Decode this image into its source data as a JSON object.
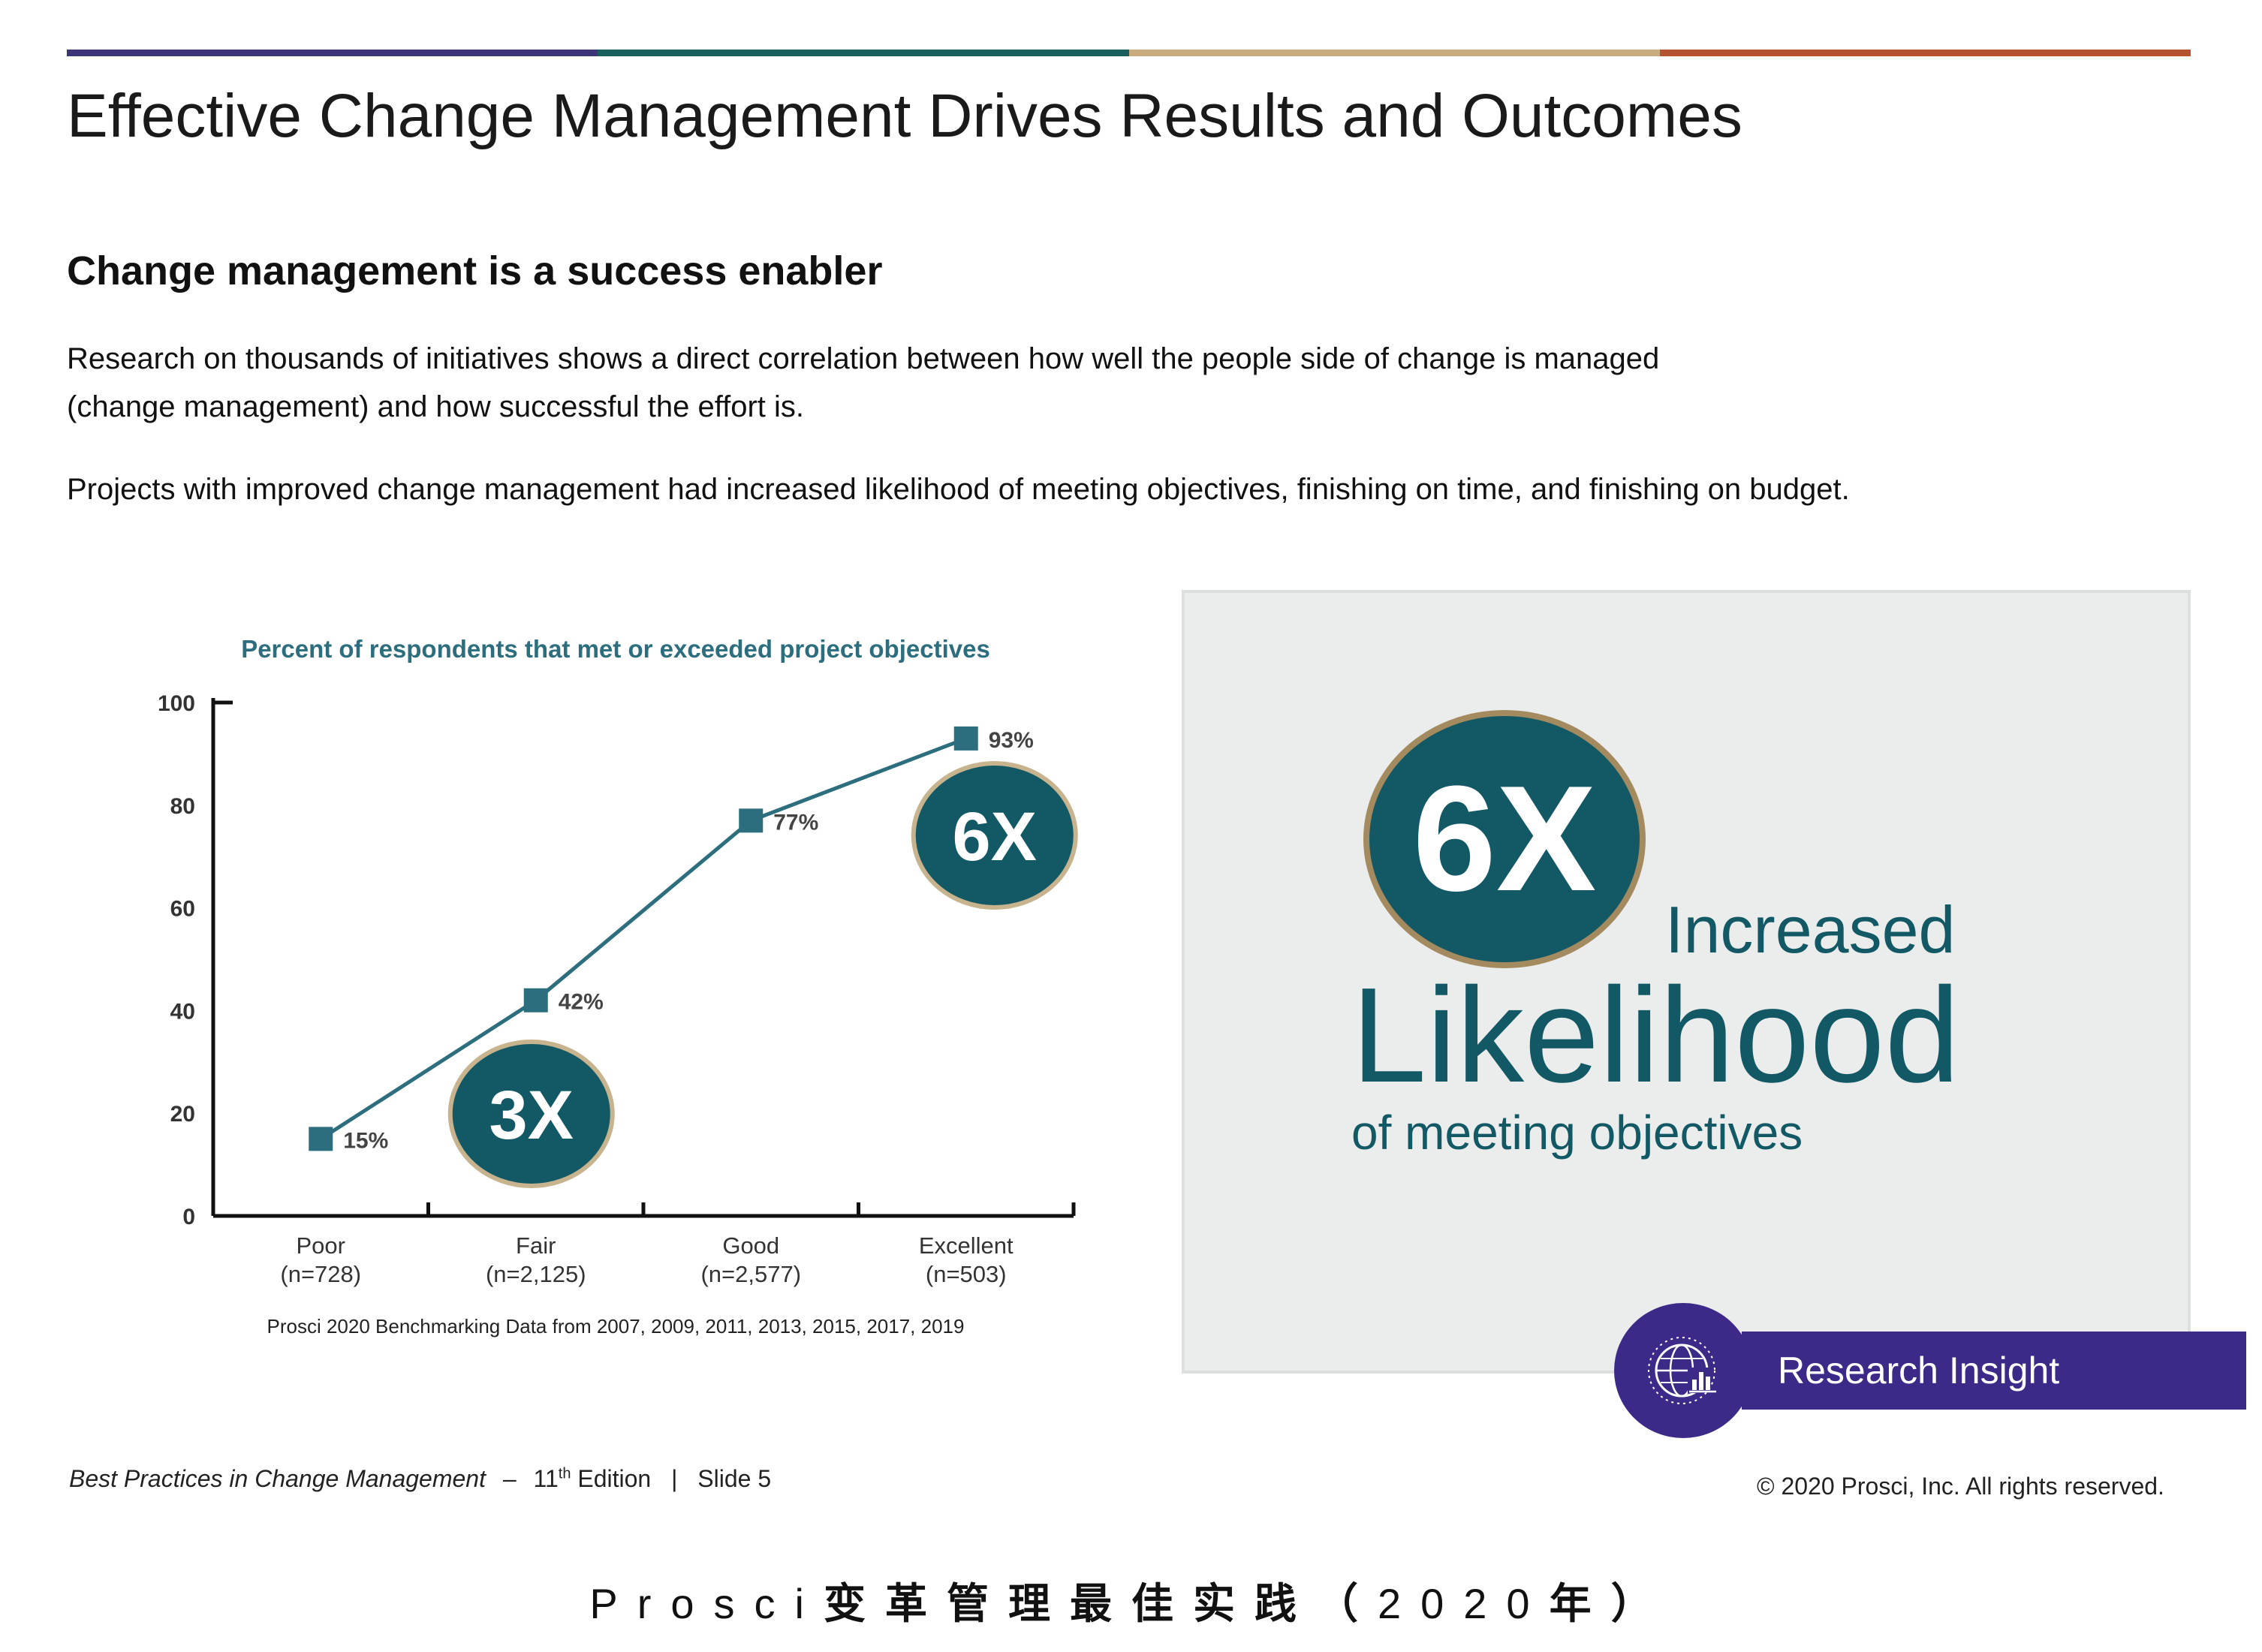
{
  "header": {
    "stripe_colors": [
      "#3b3578",
      "#175f5e",
      "#c8ab7e",
      "#b5522f"
    ],
    "title": "Effective Change Management Drives Results and Outcomes",
    "subtitle": "Change management is a success enabler"
  },
  "body": {
    "para1_line1": "Research on thousands of initiatives shows a direct correlation between how well the people side of change is managed",
    "para1_line2": "(change management) and how successful the effort is.",
    "para2": "Projects with improved change management had increased likelihood of meeting objectives, finishing on time, and finishing on budget."
  },
  "chart_data": {
    "type": "line",
    "title": "Percent of respondents that met or exceeded project objectives",
    "categories": [
      "Poor",
      "Fair",
      "Good",
      "Excellent"
    ],
    "category_sub": [
      "(n=728)",
      "(n=2,125)",
      "(n=2,577)",
      "(n=503)"
    ],
    "values": [
      15,
      42,
      77,
      93
    ],
    "data_labels": [
      "15%",
      "42%",
      "77%",
      "93%"
    ],
    "ylim": [
      0,
      100
    ],
    "yticks": [
      "0",
      "20",
      "40",
      "60",
      "80",
      "100"
    ],
    "xlabel": "",
    "ylabel": "",
    "grid": false,
    "badges": [
      "3X",
      "6X"
    ],
    "source": "Prosci 2020 Benchmarking Data from 2007, 2009, 2011, 2013, 2015, 2017, 2019",
    "line_color": "#2d6e7e",
    "badge_color": "#125965",
    "badge_border": "#c7b48f"
  },
  "insight": {
    "multiplier": "6X",
    "line1": "Increased",
    "line2": "Likelihood",
    "line3": "of meeting objectives",
    "badge_label": "Research Insight",
    "badge_icon": "globe-chart-icon"
  },
  "footer": {
    "book": "Best Practices in Change Management",
    "dash": "–",
    "edition_num": "11",
    "edition_sup": "th",
    "edition_rest": "Edition",
    "sep": "|",
    "slide": "Slide 5",
    "copyright": "© 2020 Prosci, Inc. All rights reserved.",
    "cn_prefix": "Prosci",
    "cn_bold1": "变革管理最佳实践（",
    "cn_year": "2020",
    "cn_bold2": "年）"
  }
}
